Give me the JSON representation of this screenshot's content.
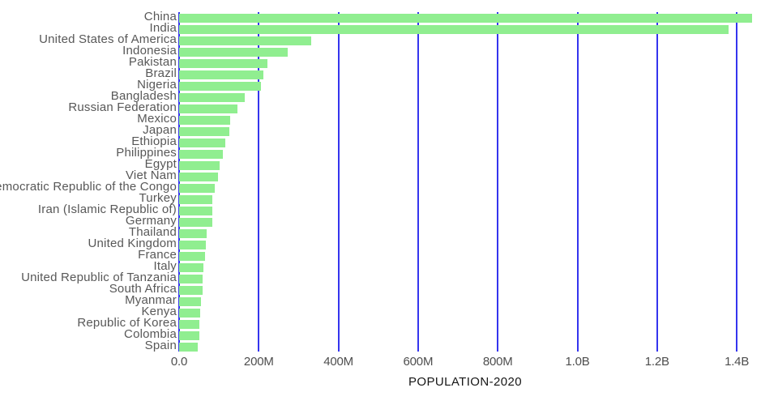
{
  "title": "POPULATION-2020",
  "colors": {
    "bar": "#90ee90",
    "gridline": "#3535ee",
    "y_label": "#585858",
    "x_tick": "#4e4e4e",
    "title": "#161616",
    "background": "#ffffff"
  },
  "chart_data": {
    "type": "bar",
    "orientation": "horizontal",
    "title": "",
    "xlabel": "POPULATION-2020",
    "ylabel": "",
    "grid": true,
    "legend": false,
    "xlim_millions": [
      0,
      1503
    ],
    "x_tick_labels": [
      "0.0",
      "200M",
      "400M",
      "600M",
      "800M",
      "1.0B",
      "1.2B",
      "1.4B"
    ],
    "x_tick_values_millions": [
      0,
      200,
      400,
      600,
      800,
      1000,
      1200,
      1400
    ],
    "categories": [
      "China",
      "India",
      "United States of America",
      "Indonesia",
      "Pakistan",
      "Brazil",
      "Nigeria",
      "Bangladesh",
      "Russian Federation",
      "Mexico",
      "Japan",
      "Ethiopia",
      "Philippines",
      "Egypt",
      "Viet Nam",
      "Democratic Republic of the Congo",
      "Turkey",
      "Iran (Islamic Republic of)",
      "Germany",
      "Thailand",
      "United Kingdom",
      "France",
      "Italy",
      "United Republic of Tanzania",
      "South Africa",
      "Myanmar",
      "Kenya",
      "Republic of Korea",
      "Colombia",
      "Spain"
    ],
    "values_millions": [
      1439.3,
      1380.0,
      331.0,
      273.5,
      220.9,
      212.6,
      206.1,
      164.7,
      145.9,
      128.9,
      126.5,
      115.0,
      109.6,
      102.3,
      97.3,
      89.6,
      84.3,
      84.0,
      83.8,
      69.8,
      67.9,
      65.3,
      60.5,
      59.7,
      59.3,
      54.4,
      53.8,
      51.3,
      50.9,
      46.8
    ]
  }
}
